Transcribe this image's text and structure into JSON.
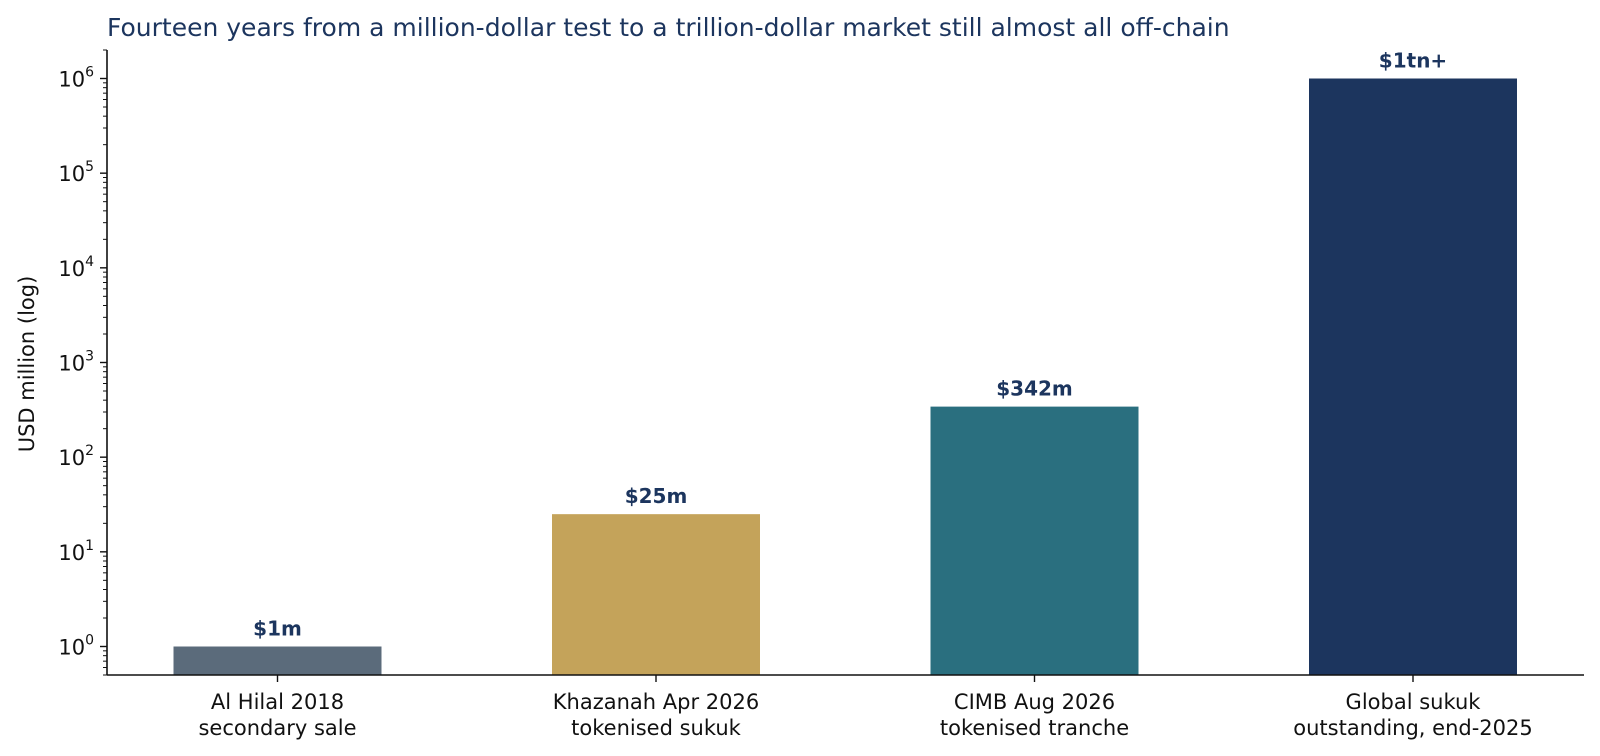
{
  "chart_data": {
    "type": "bar",
    "title": "Fourteen years from a million-dollar test to a trillion-dollar market still almost all off-chain",
    "xlabel": "",
    "ylabel": "USD million (log)",
    "yscale": "log",
    "ylim": [
      0.5,
      2000000
    ],
    "yticks": [
      {
        "base": "10",
        "exp": "0",
        "value": 1
      },
      {
        "base": "10",
        "exp": "1",
        "value": 10
      },
      {
        "base": "10",
        "exp": "2",
        "value": 100
      },
      {
        "base": "10",
        "exp": "3",
        "value": 1000
      },
      {
        "base": "10",
        "exp": "4",
        "value": 10000
      },
      {
        "base": "10",
        "exp": "5",
        "value": 100000
      },
      {
        "base": "10",
        "exp": "6",
        "value": 1000000
      }
    ],
    "categories": [
      [
        "Al Hilal 2018",
        "secondary sale"
      ],
      [
        "Khazanah Apr 2026",
        "tokenised sukuk"
      ],
      [
        "CIMB Aug 2026",
        "tokenised tranche"
      ],
      [
        "Global sukuk",
        "outstanding, end-2025"
      ]
    ],
    "values": [
      1,
      25,
      342,
      1000000
    ],
    "data_labels": [
      "$1m",
      "$25m",
      "$342m",
      "$1tn+"
    ],
    "colors": [
      "#5b6b7b",
      "#c4a35a",
      "#2a6f7f",
      "#1c355e"
    ],
    "grid": false,
    "legend": "none"
  }
}
